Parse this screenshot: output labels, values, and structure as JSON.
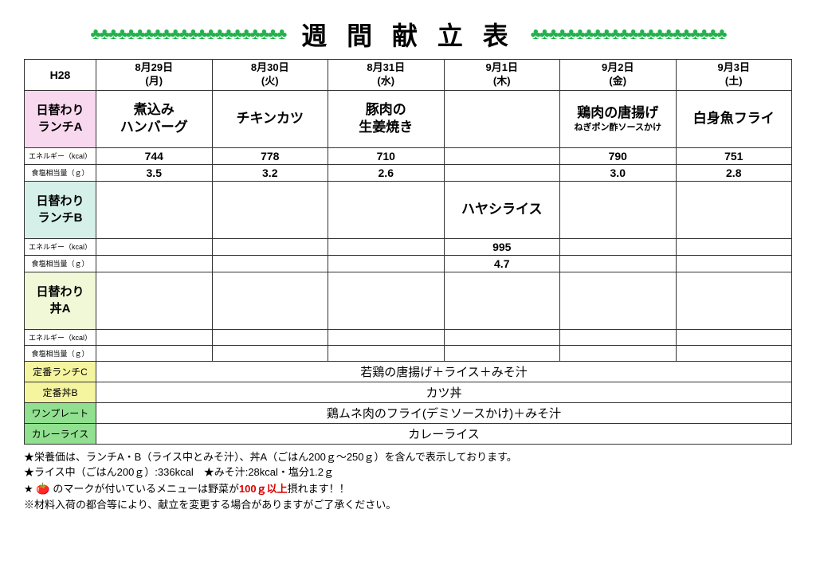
{
  "title": "週 間 献 立 表",
  "clover": "♣♣♣♣♣♣♣♣♣♣♣♣♣♣♣♣♣♣♣♣♣♣",
  "era": "H28",
  "dates": [
    {
      "date": "8月29日",
      "dow": "(月)"
    },
    {
      "date": "8月30日",
      "dow": "(火)"
    },
    {
      "date": "8月31日",
      "dow": "(水)"
    },
    {
      "date": "9月1日",
      "dow": "(木)"
    },
    {
      "date": "9月2日",
      "dow": "(金)"
    },
    {
      "date": "9月3日",
      "dow": "(土)"
    }
  ],
  "rowLabels": {
    "lunchA": "日替わり\nランチA",
    "lunchB": "日替わり\nランチB",
    "donA": "日替わり\n丼A",
    "energy": "エネルギー（kcal）",
    "salt": "食塩相当量（ｇ）",
    "fixedC": "定番ランチC",
    "fixedDonB": "定番丼B",
    "onePlate": "ワンプレート",
    "curry": "カレーライス"
  },
  "lunchA": {
    "menus": [
      {
        "main": "煮込み\nハンバーグ",
        "sub": ""
      },
      {
        "main": "チキンカツ",
        "sub": ""
      },
      {
        "main": "豚肉の\n生姜焼き",
        "sub": ""
      },
      {
        "main": "",
        "sub": ""
      },
      {
        "main": "鶏肉の唐揚げ",
        "sub": "ねぎポン酢ソースかけ"
      },
      {
        "main": "白身魚フライ",
        "sub": ""
      }
    ],
    "energy": [
      "744",
      "778",
      "710",
      "",
      "790",
      "751"
    ],
    "salt": [
      "3.5",
      "3.2",
      "2.6",
      "",
      "3.0",
      "2.8"
    ]
  },
  "lunchB": {
    "menus": [
      {
        "main": ""
      },
      {
        "main": ""
      },
      {
        "main": ""
      },
      {
        "main": "ハヤシライス"
      },
      {
        "main": ""
      },
      {
        "main": ""
      }
    ],
    "energy": [
      "",
      "",
      "",
      "995",
      "",
      ""
    ],
    "salt": [
      "",
      "",
      "",
      "4.7",
      "",
      ""
    ]
  },
  "donA": {
    "menus": [
      {
        "main": ""
      },
      {
        "main": ""
      },
      {
        "main": ""
      },
      {
        "main": ""
      },
      {
        "main": ""
      },
      {
        "main": ""
      }
    ],
    "energy": [
      "",
      "",
      "",
      "",
      "",
      ""
    ],
    "salt": [
      "",
      "",
      "",
      "",
      "",
      ""
    ]
  },
  "fixedMenus": {
    "lunchC": "若鶏の唐揚げ＋ライス＋みそ汁",
    "donB": "カツ丼",
    "onePlate": "鶏ムネ肉のフライ(デミソースかけ)＋みそ汁",
    "curry": "カレーライス"
  },
  "footer": {
    "line1": "★栄養価は、ランチA・B（ライス中とみそ汁）、丼A（ごはん200ｇ～250ｇ）を含んで表示しております。",
    "line2": "★ライス中（ごはん200ｇ）:336kcal　★みそ汁:28kcal・塩分1.2ｇ",
    "line3a": "★ ",
    "line3b": " のマークが付いているメニューは野菜が",
    "line3highlight": "100ｇ以上",
    "line3c": "摂れます！！",
    "line4": "※材料入荷の都合等により、献立を変更する場合がありますがご了承ください。"
  }
}
